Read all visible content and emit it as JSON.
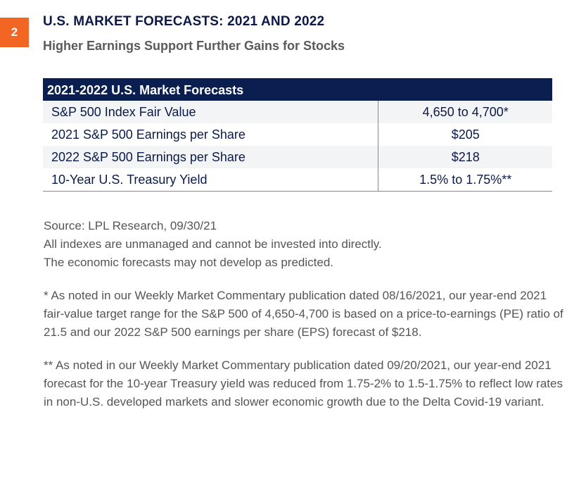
{
  "figure_number": "2",
  "title": "U.S. MARKET FORECASTS: 2021 AND 2022",
  "subtitle": "Higher Earnings Support Further Gains for Stocks",
  "table": {
    "header": "2021-2022 U.S. Market Forecasts",
    "rows": [
      {
        "label": "S&P 500 Index Fair Value",
        "value": "4,650 to 4,700*"
      },
      {
        "label": "2021 S&P 500 Earnings per Share",
        "value": "$205"
      },
      {
        "label": "2022 S&P 500 Earnings per Share",
        "value": "$218"
      },
      {
        "label": "10-Year U.S. Treasury Yield",
        "value": "1.5% to 1.75%**"
      }
    ]
  },
  "notes": {
    "source": "Source: LPL Research,  09/30/21",
    "line1": "All indexes are unmanaged and cannot be invested into directly.",
    "line2": "The economic forecasts may not develop as predicted.",
    "footnote1": "* As noted in our Weekly Market Commentary publication dated 08/16/2021, our year-end 2021 fair-value target range for the S&P 500 of 4,650-4,700 is based on a price-to-earnings (PE) ratio of 21.5 and our 2022 S&P 500 earnings per share (EPS) forecast of $218.",
    "footnote2": "** As noted in our Weekly Market Commentary publication dated 09/20/2021, our year-end 2021 forecast for the 10-year Treasury yield was reduced from 1.75-2% to 1.5-1.75% to reflect low rates in non-U.S. developed markets and slower economic growth due to the Delta Covid-19 variant."
  },
  "colors": {
    "accent": "#f26522",
    "navy": "#0a1f4f"
  }
}
